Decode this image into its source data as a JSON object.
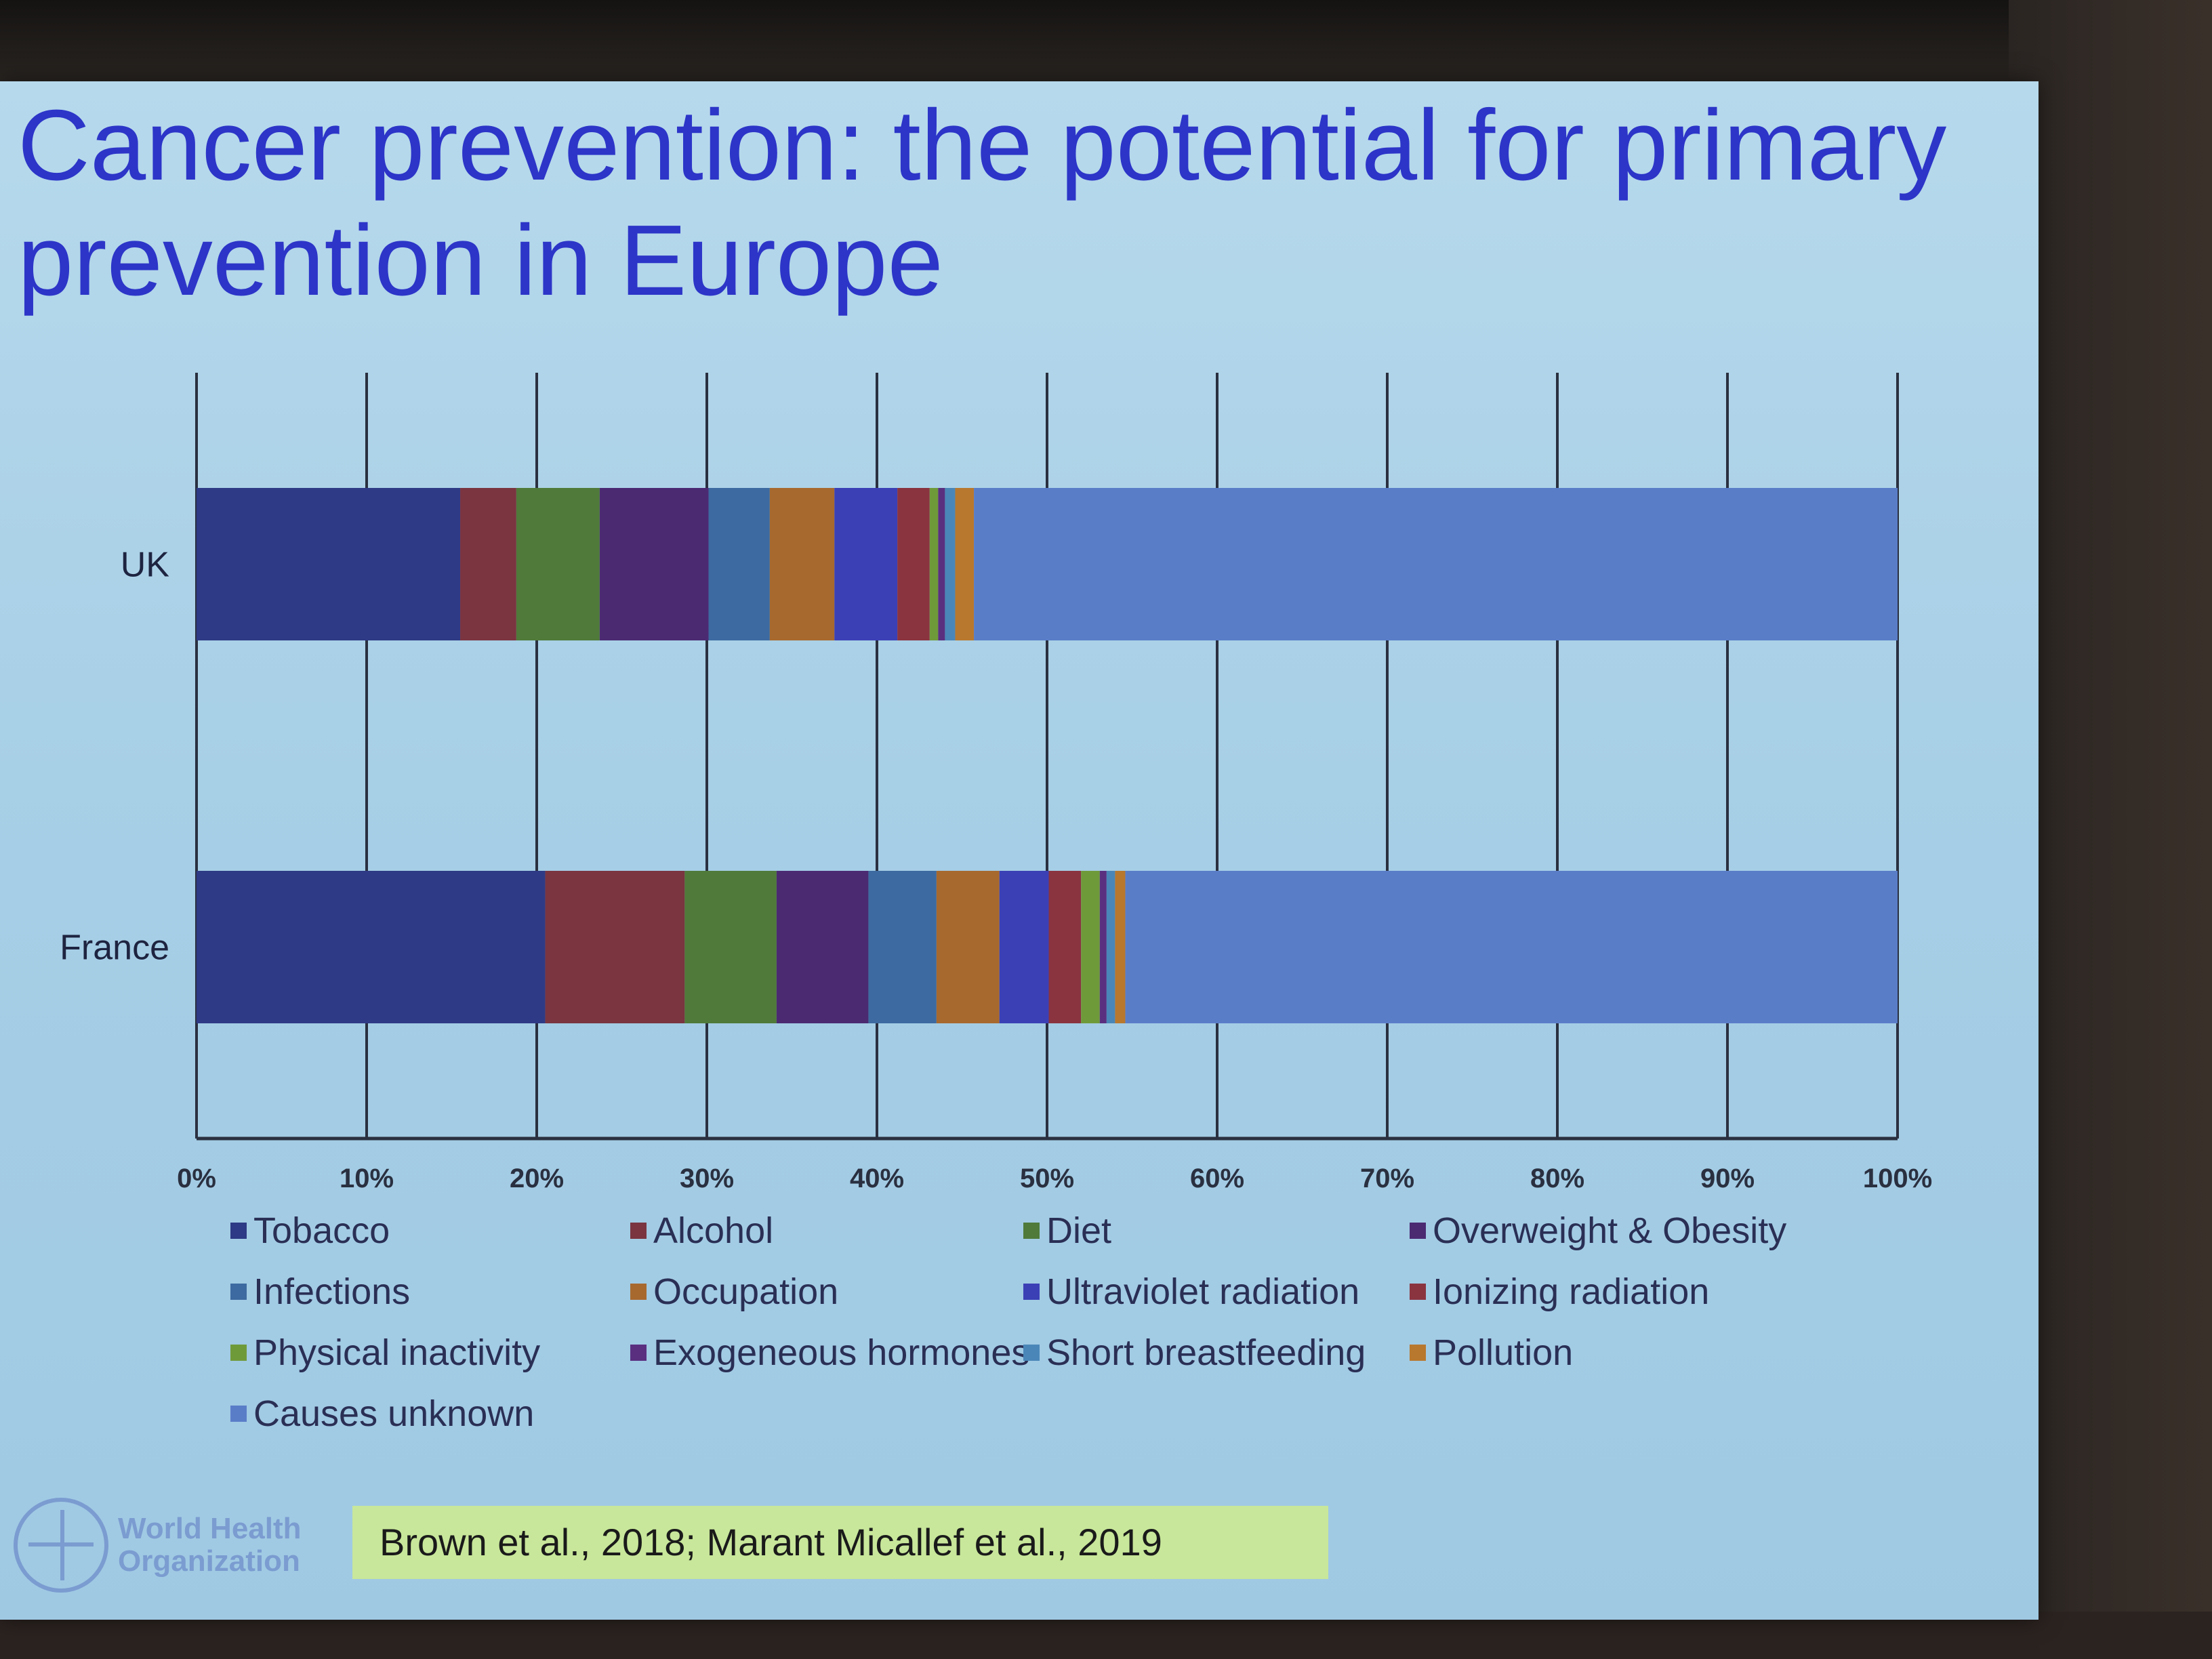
{
  "slide": {
    "title_line1": "Cancer prevention: the potential for primary",
    "title_line2": "prevention in Europe",
    "citation": "Brown et al., 2018; Marant Micallef et al., 2019",
    "logo_line1": "World Health",
    "logo_line2": "Organization"
  },
  "chart_data": {
    "type": "bar",
    "orientation": "horizontal",
    "stacked": true,
    "categories": [
      "UK",
      "France"
    ],
    "xlim": [
      0,
      100
    ],
    "x_ticks": [
      "0%",
      "10%",
      "20%",
      "30%",
      "40%",
      "50%",
      "60%",
      "70%",
      "80%",
      "90%",
      "100%"
    ],
    "grid": "vertical",
    "legend_position": "bottom",
    "series": [
      {
        "name": "Tobacco",
        "color": "#2e3a85",
        "values": [
          15.5,
          20.5
        ]
      },
      {
        "name": "Alcohol",
        "color": "#7a3540",
        "values": [
          3.3,
          8.2
        ]
      },
      {
        "name": "Diet",
        "color": "#4f7a3a",
        "values": [
          4.9,
          5.4
        ]
      },
      {
        "name": "Overweight & Obesity",
        "color": "#4b2a72",
        "values": [
          6.4,
          5.4
        ]
      },
      {
        "name": "Infections",
        "color": "#3d6aa0",
        "values": [
          3.6,
          4.0
        ]
      },
      {
        "name": "Occupation",
        "color": "#a8692e",
        "values": [
          3.8,
          3.7
        ]
      },
      {
        "name": "Ultraviolet radiation",
        "color": "#3b40b5",
        "values": [
          3.7,
          2.9
        ]
      },
      {
        "name": "Ionizing radiation",
        "color": "#8a3440",
        "values": [
          1.9,
          1.9
        ]
      },
      {
        "name": "Physical inactivity",
        "color": "#6f9a3a",
        "values": [
          0.5,
          1.1
        ]
      },
      {
        "name": "Exogeneous hormones",
        "color": "#5a2f80",
        "values": [
          0.4,
          0.4
        ]
      },
      {
        "name": "Short breastfeeding",
        "color": "#4a86b8",
        "values": [
          0.6,
          0.5
        ]
      },
      {
        "name": "Pollution",
        "color": "#b8782e",
        "values": [
          1.1,
          0.6
        ]
      },
      {
        "name": "Causes unknown",
        "color": "#5a7dc8",
        "values": [
          54.3,
          45.4
        ]
      }
    ]
  }
}
